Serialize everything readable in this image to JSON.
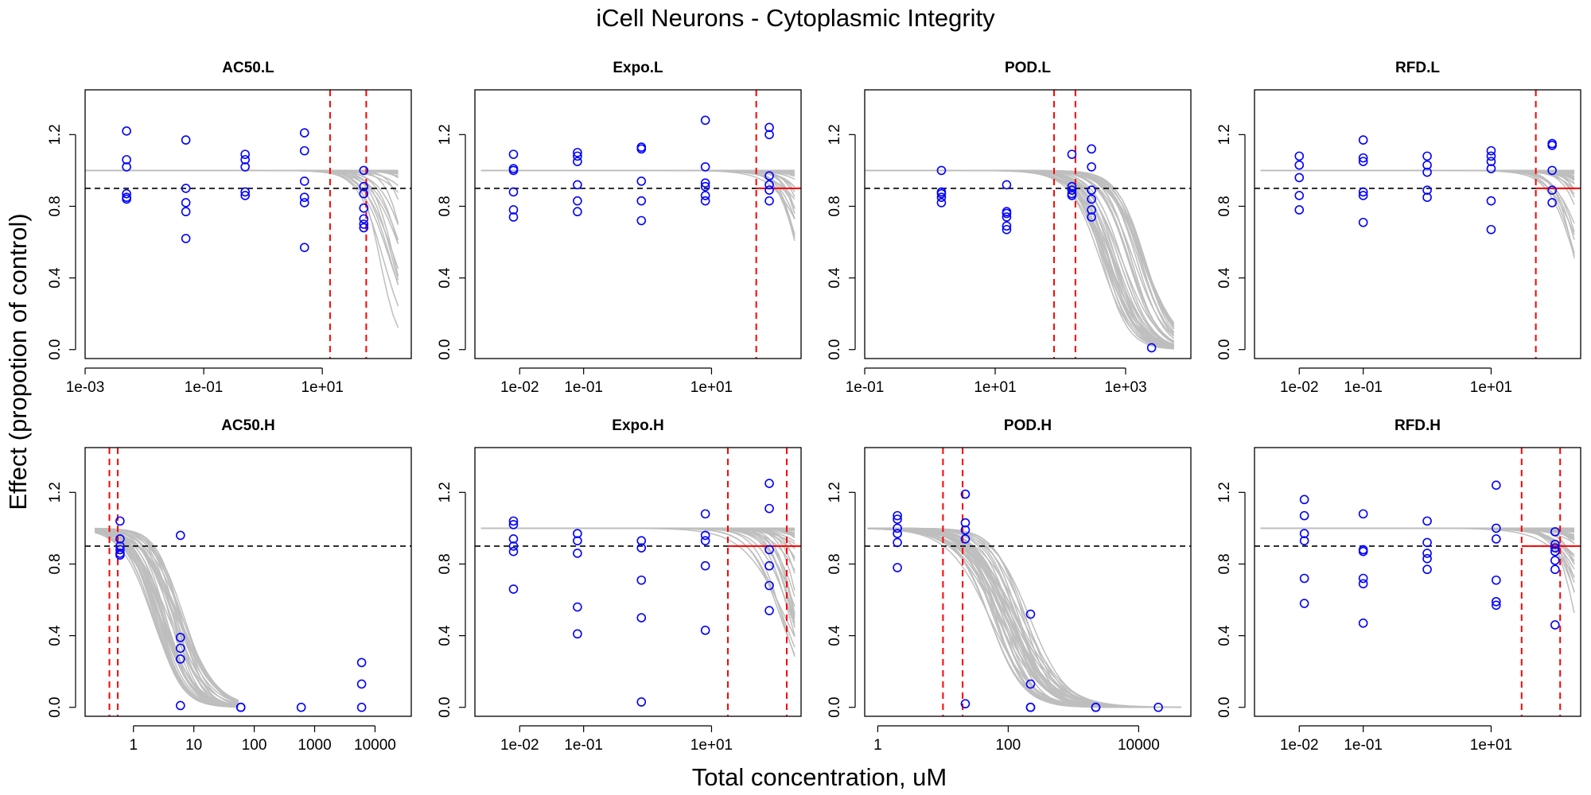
{
  "figure": {
    "title": "iCell Neurons -  Cytoplasmic Integrity",
    "xlabel": "Total concentration, uM",
    "ylabel": "Effect (propotion of control)"
  },
  "colors": {
    "points": "#0000ff",
    "curves": "#bebebe",
    "threshold": "#000000",
    "markers": "#ff0000"
  },
  "chart_data": [
    {
      "type": "scatter",
      "title": "AC50.L",
      "xlog": true,
      "xlim_log10": [
        -3,
        2.5
      ],
      "ylim": [
        -0.05,
        1.45
      ],
      "xticks": [
        {
          "v": 0.001,
          "label": "1e-03"
        },
        {
          "v": 0.1,
          "label": "1e-01"
        },
        {
          "v": 10,
          "label": "1e+01"
        }
      ],
      "yticks": [
        {
          "v": 0.0,
          "label": "0.0"
        },
        {
          "v": 0.4,
          "label": "0.4"
        },
        {
          "v": 0.8,
          "label": "0.8"
        },
        {
          "v": 1.2,
          "label": "1.2"
        }
      ],
      "threshold": 0.9,
      "vlines": [
        13.5,
        55
      ],
      "curves": {
        "top": 1.0,
        "ac50_range": [
          90,
          4000
        ],
        "hill_range": [
          1.5,
          3
        ],
        "x_range": [
          0.001,
          190
        ],
        "n": 40
      },
      "points": [
        [
          0.005,
          1.22
        ],
        [
          0.005,
          1.06
        ],
        [
          0.005,
          1.02
        ],
        [
          0.005,
          0.87
        ],
        [
          0.005,
          0.85
        ],
        [
          0.005,
          0.84
        ],
        [
          0.05,
          1.17
        ],
        [
          0.05,
          0.9
        ],
        [
          0.05,
          0.82
        ],
        [
          0.05,
          0.77
        ],
        [
          0.05,
          0.62
        ],
        [
          0.5,
          1.09
        ],
        [
          0.5,
          1.06
        ],
        [
          0.5,
          1.02
        ],
        [
          0.5,
          0.88
        ],
        [
          0.5,
          0.86
        ],
        [
          5,
          1.21
        ],
        [
          5,
          1.11
        ],
        [
          5,
          0.94
        ],
        [
          5,
          0.85
        ],
        [
          5,
          0.82
        ],
        [
          5,
          0.57
        ],
        [
          50,
          1.0
        ],
        [
          50,
          0.91
        ],
        [
          50,
          0.87
        ],
        [
          50,
          0.79
        ],
        [
          50,
          0.73
        ],
        [
          50,
          0.7
        ],
        [
          50,
          0.68
        ]
      ]
    },
    {
      "type": "scatter",
      "title": "Expo.L",
      "xlog": true,
      "xlim_log10": [
        -2.7,
        2.4
      ],
      "ylim": [
        -0.05,
        1.45
      ],
      "xticks": [
        {
          "v": 0.01,
          "label": "1e-02"
        },
        {
          "v": 0.1,
          "label": "1e-01"
        },
        {
          "v": 10,
          "label": "1e+01"
        }
      ],
      "yticks": [
        {
          "v": 0.0,
          "label": "0.0"
        },
        {
          "v": 0.4,
          "label": "0.4"
        },
        {
          "v": 0.8,
          "label": "0.8"
        },
        {
          "v": 1.2,
          "label": "1.2"
        }
      ],
      "threshold": 0.9,
      "vlines": [
        50
      ],
      "hline_from": 50,
      "curves": {
        "top": 1.0,
        "ac50_range": [
          200,
          6000
        ],
        "hill_range": [
          1.5,
          3
        ],
        "x_range": [
          0.0025,
          200
        ],
        "n": 40
      },
      "points": [
        [
          0.008,
          1.09
        ],
        [
          0.008,
          1.01
        ],
        [
          0.008,
          1.0
        ],
        [
          0.008,
          0.88
        ],
        [
          0.008,
          0.78
        ],
        [
          0.008,
          0.74
        ],
        [
          0.08,
          1.1
        ],
        [
          0.08,
          1.08
        ],
        [
          0.08,
          1.05
        ],
        [
          0.08,
          0.92
        ],
        [
          0.08,
          0.83
        ],
        [
          0.08,
          0.77
        ],
        [
          0.8,
          1.13
        ],
        [
          0.8,
          1.12
        ],
        [
          0.8,
          0.94
        ],
        [
          0.8,
          0.83
        ],
        [
          0.8,
          0.72
        ],
        [
          8,
          1.28
        ],
        [
          8,
          1.02
        ],
        [
          8,
          0.93
        ],
        [
          8,
          0.91
        ],
        [
          8,
          0.86
        ],
        [
          8,
          0.83
        ],
        [
          80,
          1.24
        ],
        [
          80,
          1.2
        ],
        [
          80,
          0.97
        ],
        [
          80,
          0.92
        ],
        [
          80,
          0.89
        ],
        [
          80,
          0.83
        ]
      ]
    },
    {
      "type": "scatter",
      "title": "POD.L",
      "xlog": true,
      "xlim_log10": [
        -1,
        4
      ],
      "ylim": [
        -0.05,
        1.45
      ],
      "xticks": [
        {
          "v": 0.1,
          "label": "1e-01"
        },
        {
          "v": 10,
          "label": "1e+01"
        },
        {
          "v": 1000,
          "label": "1e+03"
        }
      ],
      "yticks": [
        {
          "v": 0.0,
          "label": "0.0"
        },
        {
          "v": 0.4,
          "label": "0.4"
        },
        {
          "v": 0.8,
          "label": "0.8"
        },
        {
          "v": 1.2,
          "label": "1.2"
        }
      ],
      "threshold": 0.9,
      "vlines": [
        80,
        170
      ],
      "curves": {
        "top": 1.0,
        "ac50_range": [
          400,
          2000
        ],
        "hill_range": [
          1.6,
          2.2
        ],
        "x_range": [
          0.1,
          5500
        ],
        "n": 40
      },
      "points": [
        [
          1.5,
          1.0
        ],
        [
          1.5,
          0.88
        ],
        [
          1.5,
          0.87
        ],
        [
          1.5,
          0.85
        ],
        [
          1.5,
          0.82
        ],
        [
          15,
          0.92
        ],
        [
          15,
          0.77
        ],
        [
          15,
          0.76
        ],
        [
          15,
          0.74
        ],
        [
          15,
          0.69
        ],
        [
          15,
          0.67
        ],
        [
          150,
          1.09
        ],
        [
          150,
          0.91
        ],
        [
          150,
          0.89
        ],
        [
          150,
          0.87
        ],
        [
          150,
          0.86
        ],
        [
          300,
          1.12
        ],
        [
          300,
          1.02
        ],
        [
          300,
          0.89
        ],
        [
          300,
          0.84
        ],
        [
          300,
          0.78
        ],
        [
          300,
          0.74
        ],
        [
          2500,
          0.01
        ]
      ]
    },
    {
      "type": "scatter",
      "title": "RFD.L",
      "xlog": true,
      "xlim_log10": [
        -2.7,
        2.4
      ],
      "ylim": [
        -0.05,
        1.45
      ],
      "xticks": [
        {
          "v": 0.01,
          "label": "1e-02"
        },
        {
          "v": 0.1,
          "label": "1e-01"
        },
        {
          "v": 10,
          "label": "1e+01"
        }
      ],
      "yticks": [
        {
          "v": 0.0,
          "label": "0.0"
        },
        {
          "v": 0.4,
          "label": "0.4"
        },
        {
          "v": 0.8,
          "label": "0.8"
        },
        {
          "v": 1.2,
          "label": "1.2"
        }
      ],
      "threshold": 0.9,
      "vlines": [
        50
      ],
      "hline_from": 50,
      "curves": {
        "top": 1.0,
        "ac50_range": [
          200,
          6000
        ],
        "hill_range": [
          1.5,
          3
        ],
        "x_range": [
          0.0025,
          200
        ],
        "n": 40
      },
      "points": [
        [
          0.01,
          1.08
        ],
        [
          0.01,
          1.03
        ],
        [
          0.01,
          0.96
        ],
        [
          0.01,
          0.86
        ],
        [
          0.01,
          0.78
        ],
        [
          0.1,
          1.17
        ],
        [
          0.1,
          1.07
        ],
        [
          0.1,
          1.05
        ],
        [
          0.1,
          0.88
        ],
        [
          0.1,
          0.86
        ],
        [
          0.1,
          0.71
        ],
        [
          1,
          1.08
        ],
        [
          1,
          1.03
        ],
        [
          1,
          0.99
        ],
        [
          1,
          0.89
        ],
        [
          1,
          0.85
        ],
        [
          10,
          1.11
        ],
        [
          10,
          1.08
        ],
        [
          10,
          1.05
        ],
        [
          10,
          1.01
        ],
        [
          10,
          0.83
        ],
        [
          10,
          0.67
        ],
        [
          90,
          1.15
        ],
        [
          90,
          1.14
        ],
        [
          90,
          1.0
        ],
        [
          90,
          0.89
        ],
        [
          90,
          0.82
        ]
      ]
    },
    {
      "type": "scatter",
      "title": "AC50.H",
      "xlog": true,
      "xlim_log10": [
        -0.8,
        4.6
      ],
      "ylim": [
        -0.05,
        1.45
      ],
      "xticks": [
        {
          "v": 1,
          "label": "1"
        },
        {
          "v": 10,
          "label": "10"
        },
        {
          "v": 100,
          "label": "100"
        },
        {
          "v": 1000,
          "label": "1000"
        },
        {
          "v": 10000,
          "label": "10000"
        }
      ],
      "yticks": [
        {
          "v": 0.0,
          "label": "0.0"
        },
        {
          "v": 0.4,
          "label": "0.4"
        },
        {
          "v": 0.8,
          "label": "0.8"
        },
        {
          "v": 1.2,
          "label": "1.2"
        }
      ],
      "threshold": 0.9,
      "vlines": [
        0.4,
        0.55
      ],
      "curves": {
        "top": 1.0,
        "ac50_range": [
          2,
          7
        ],
        "hill_range": [
          1.4,
          2.2
        ],
        "x_range": [
          0.23,
          55
        ],
        "n": 40
      },
      "points": [
        [
          0.6,
          1.04
        ],
        [
          0.6,
          0.94
        ],
        [
          0.6,
          0.9
        ],
        [
          0.6,
          0.88
        ],
        [
          0.6,
          0.86
        ],
        [
          0.6,
          0.85
        ],
        [
          6,
          0.96
        ],
        [
          6,
          0.39
        ],
        [
          6,
          0.33
        ],
        [
          6,
          0.27
        ],
        [
          6,
          0.01
        ],
        [
          60,
          0.0
        ],
        [
          60,
          0.0
        ],
        [
          600,
          0.0
        ],
        [
          6000,
          0.25
        ],
        [
          6000,
          0.13
        ],
        [
          6000,
          0.0
        ]
      ]
    },
    {
      "type": "scatter",
      "title": "Expo.H",
      "xlog": true,
      "xlim_log10": [
        -2.7,
        2.4
      ],
      "ylim": [
        -0.05,
        1.45
      ],
      "xticks": [
        {
          "v": 0.01,
          "label": "1e-02"
        },
        {
          "v": 0.1,
          "label": "1e-01"
        },
        {
          "v": 10,
          "label": "1e+01"
        }
      ],
      "yticks": [
        {
          "v": 0.0,
          "label": "0.0"
        },
        {
          "v": 0.4,
          "label": "0.4"
        },
        {
          "v": 0.8,
          "label": "0.8"
        },
        {
          "v": 1.2,
          "label": "1.2"
        }
      ],
      "threshold": 0.9,
      "vlines": [
        18,
        150
      ],
      "hline_from": 18,
      "curves": {
        "top": 1.0,
        "ac50_range": [
          120,
          5000
        ],
        "hill_range": [
          1.2,
          3
        ],
        "x_range": [
          0.0025,
          200
        ],
        "n": 40
      },
      "points": [
        [
          0.008,
          1.04
        ],
        [
          0.008,
          1.02
        ],
        [
          0.008,
          0.94
        ],
        [
          0.008,
          0.9
        ],
        [
          0.008,
          0.87
        ],
        [
          0.008,
          0.66
        ],
        [
          0.08,
          0.97
        ],
        [
          0.08,
          0.93
        ],
        [
          0.08,
          0.86
        ],
        [
          0.08,
          0.56
        ],
        [
          0.08,
          0.41
        ],
        [
          0.8,
          0.93
        ],
        [
          0.8,
          0.89
        ],
        [
          0.8,
          0.71
        ],
        [
          0.8,
          0.5
        ],
        [
          0.8,
          0.03
        ],
        [
          8,
          1.08
        ],
        [
          8,
          0.96
        ],
        [
          8,
          0.93
        ],
        [
          8,
          0.79
        ],
        [
          8,
          0.43
        ],
        [
          80,
          1.25
        ],
        [
          80,
          1.11
        ],
        [
          80,
          0.88
        ],
        [
          80,
          0.79
        ],
        [
          80,
          0.68
        ],
        [
          80,
          0.54
        ]
      ]
    },
    {
      "type": "scatter",
      "title": "POD.H",
      "xlog": true,
      "xlim_log10": [
        -0.2,
        4.8
      ],
      "ylim": [
        -0.05,
        1.45
      ],
      "xticks": [
        {
          "v": 1,
          "label": "1"
        },
        {
          "v": 100,
          "label": "100"
        },
        {
          "v": 10000,
          "label": "10000"
        }
      ],
      "yticks": [
        {
          "v": 0.0,
          "label": "0.0"
        },
        {
          "v": 0.4,
          "label": "0.4"
        },
        {
          "v": 0.8,
          "label": "0.8"
        },
        {
          "v": 1.2,
          "label": "1.2"
        }
      ],
      "threshold": 0.9,
      "vlines": [
        10,
        20
      ],
      "curves": {
        "top": 1.0,
        "ac50_range": [
          50,
          220
        ],
        "hill_range": [
          1.2,
          2
        ],
        "x_range": [
          0.7,
          45000
        ],
        "n": 40
      },
      "points": [
        [
          2,
          1.07
        ],
        [
          2,
          1.05
        ],
        [
          2,
          1.0
        ],
        [
          2,
          0.97
        ],
        [
          2,
          0.92
        ],
        [
          2,
          0.78
        ],
        [
          22,
          1.19
        ],
        [
          22,
          1.03
        ],
        [
          22,
          0.99
        ],
        [
          22,
          0.94
        ],
        [
          22,
          0.02
        ],
        [
          220,
          0.52
        ],
        [
          220,
          0.13
        ],
        [
          220,
          0.0
        ],
        [
          220,
          0.0
        ],
        [
          2200,
          0.0
        ],
        [
          2200,
          0.0
        ],
        [
          20000,
          0.0
        ]
      ]
    },
    {
      "type": "scatter",
      "title": "RFD.H",
      "xlog": true,
      "xlim_log10": [
        -2.7,
        2.4
      ],
      "ylim": [
        -0.05,
        1.45
      ],
      "xticks": [
        {
          "v": 0.01,
          "label": "1e-02"
        },
        {
          "v": 0.1,
          "label": "1e-01"
        },
        {
          "v": 10,
          "label": "1e+01"
        }
      ],
      "yticks": [
        {
          "v": 0.0,
          "label": "0.0"
        },
        {
          "v": 0.4,
          "label": "0.4"
        },
        {
          "v": 0.8,
          "label": "0.8"
        },
        {
          "v": 1.2,
          "label": "1.2"
        }
      ],
      "threshold": 0.9,
      "vlines": [
        30,
        120
      ],
      "hline_from": 30,
      "curves": {
        "top": 1.0,
        "ac50_range": [
          200,
          6000
        ],
        "hill_range": [
          1.2,
          3
        ],
        "x_range": [
          0.0025,
          200
        ],
        "n": 40
      },
      "points": [
        [
          0.012,
          1.16
        ],
        [
          0.012,
          1.07
        ],
        [
          0.012,
          0.97
        ],
        [
          0.012,
          0.93
        ],
        [
          0.012,
          0.72
        ],
        [
          0.012,
          0.58
        ],
        [
          0.1,
          1.08
        ],
        [
          0.1,
          0.88
        ],
        [
          0.1,
          0.87
        ],
        [
          0.1,
          0.72
        ],
        [
          0.1,
          0.69
        ],
        [
          0.1,
          0.47
        ],
        [
          1,
          1.04
        ],
        [
          1,
          0.92
        ],
        [
          1,
          0.86
        ],
        [
          1,
          0.83
        ],
        [
          1,
          0.77
        ],
        [
          12,
          1.24
        ],
        [
          12,
          1.0
        ],
        [
          12,
          0.94
        ],
        [
          12,
          0.71
        ],
        [
          12,
          0.59
        ],
        [
          12,
          0.57
        ],
        [
          100,
          0.98
        ],
        [
          100,
          0.91
        ],
        [
          100,
          0.89
        ],
        [
          100,
          0.87
        ],
        [
          100,
          0.82
        ],
        [
          100,
          0.77
        ],
        [
          100,
          0.46
        ]
      ]
    }
  ]
}
